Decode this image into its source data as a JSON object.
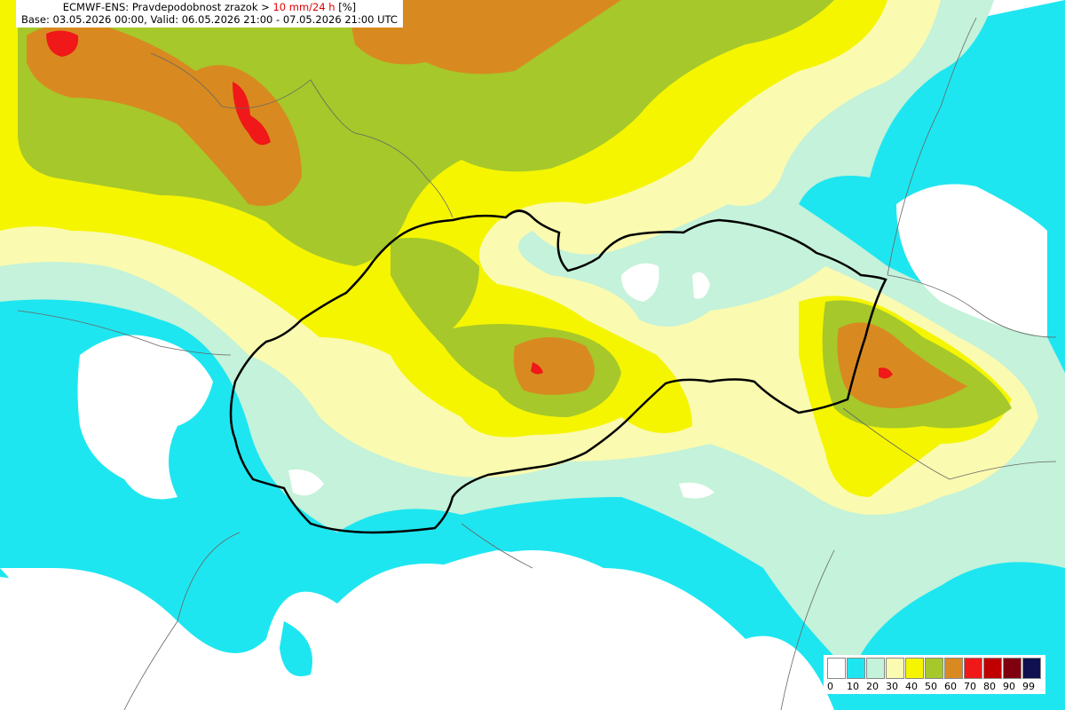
{
  "header": {
    "prefix": "ECMWF-ENS: Pravdepodobnost zrazok >",
    "threshold": "10 mm/24 h",
    "unit": "[%]",
    "line2": "Base: 03.05.2026 00:00, Valid: 06.05.2026 21:00 - 07.05.2026 21:00 UTC"
  },
  "legend": [
    {
      "label": "0",
      "color": "#ffffff"
    },
    {
      "label": "10",
      "color": "#1ee6f0"
    },
    {
      "label": "20",
      "color": "#c4f2da"
    },
    {
      "label": "30",
      "color": "#fafab0"
    },
    {
      "label": "40",
      "color": "#f5f500"
    },
    {
      "label": "50",
      "color": "#a6c82a"
    },
    {
      "label": "60",
      "color": "#d88a20"
    },
    {
      "label": "70",
      "color": "#f01818"
    },
    {
      "label": "80",
      "color": "#c00000"
    },
    {
      "label": "90",
      "color": "#800010"
    },
    {
      "label": "99",
      "color": "#101050"
    }
  ]
}
